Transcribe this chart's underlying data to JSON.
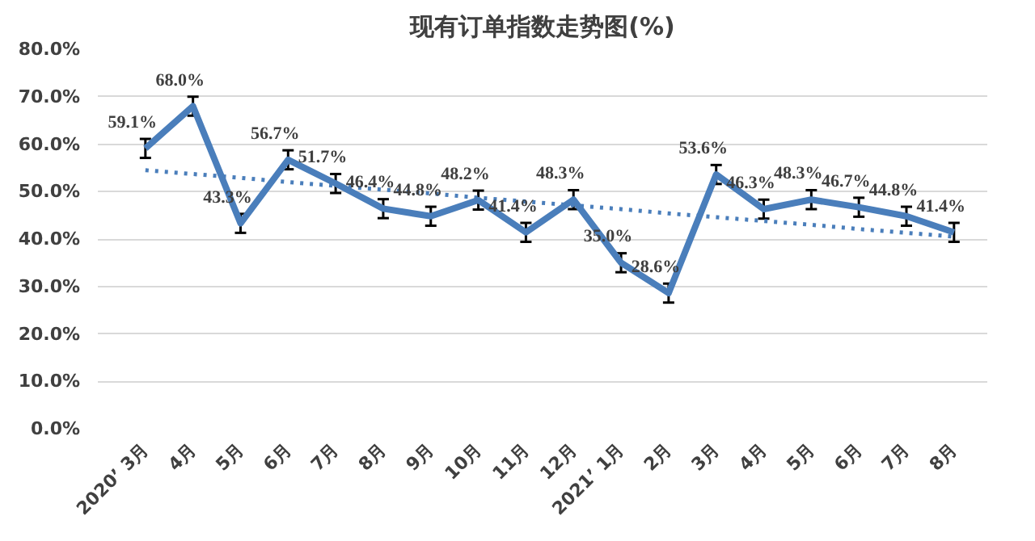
{
  "chart_data": {
    "type": "line",
    "title": "现有订单指数走势图(%)",
    "categories": [
      "2020’ 3月",
      "4月",
      "5月",
      "6月",
      "7月",
      "8月",
      "9月",
      "10月",
      "11月",
      "12月",
      "2021’ 1月",
      "2月",
      "3月",
      "4月",
      "5月",
      "6月",
      "7月",
      "8月"
    ],
    "series": [
      {
        "color": "#4a7ebb",
        "values": [
          59.1,
          68.0,
          43.3,
          56.7,
          51.7,
          46.4,
          44.8,
          48.2,
          41.4,
          48.3,
          35.0,
          28.6,
          53.6,
          46.3,
          48.3,
          46.7,
          44.8,
          41.4
        ],
        "errors": [
          2,
          2,
          2,
          2,
          2,
          2,
          2,
          2,
          2,
          2,
          2,
          2,
          2,
          2,
          2,
          2,
          2,
          2
        ],
        "value_labels": [
          "59.1%",
          "68.0%",
          "43.3%",
          "56.7%",
          "51.7%",
          "46.4%",
          "44.8%",
          "48.2%",
          "41.4%",
          "48.3%",
          "35.0%",
          "28.6%",
          "53.6%",
          "46.3%",
          "48.3%",
          "46.7%",
          "44.8%",
          "41.4%"
        ],
        "line_style": "solid"
      },
      {
        "color": "#4a7ebb",
        "values": [
          54.5,
          53.7,
          52.9,
          52.0,
          51.2,
          50.4,
          49.6,
          48.7,
          47.9,
          47.1,
          46.3,
          45.4,
          44.6,
          43.8,
          43.0,
          42.1,
          41.3,
          40.5
        ],
        "line_style": "dotted"
      }
    ],
    "ylim": [
      0,
      80
    ],
    "yticks": [
      {
        "value": 0,
        "label": "0.0%"
      },
      {
        "value": 10,
        "label": "10.0%"
      },
      {
        "value": 20,
        "label": "20.0%"
      },
      {
        "value": 30,
        "label": "30.0%"
      },
      {
        "value": 40,
        "label": "40.0%"
      },
      {
        "value": 50,
        "label": "50.0%"
      },
      {
        "value": 60,
        "label": "60.0%"
      },
      {
        "value": 70,
        "label": "70.0%"
      },
      {
        "value": 80,
        "label": "80.0%"
      }
    ],
    "grid": "y"
  }
}
